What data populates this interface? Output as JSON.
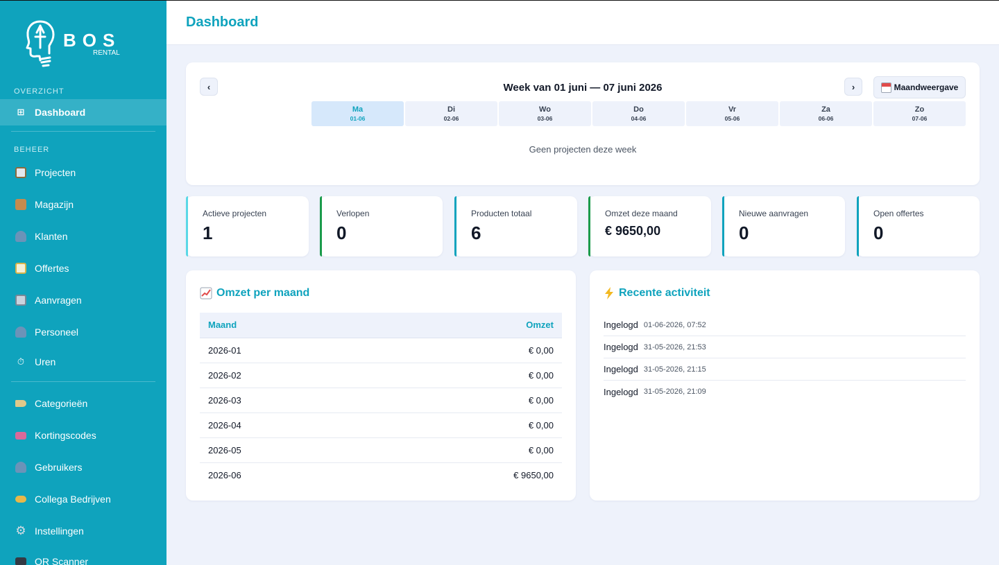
{
  "brand": {
    "name": "BOS",
    "sub": "RENTAL"
  },
  "sidebar": {
    "sections": [
      "OVERZICHT",
      "BEHEER"
    ],
    "items": [
      {
        "label": "Dashboard",
        "icon": "grid-icon"
      },
      {
        "label": "Projecten",
        "icon": "clipboard-icon"
      },
      {
        "label": "Magazijn",
        "icon": "package-icon"
      },
      {
        "label": "Klanten",
        "icon": "user-icon"
      },
      {
        "label": "Offertes",
        "icon": "memo-icon"
      },
      {
        "label": "Aanvragen",
        "icon": "inbox-icon"
      },
      {
        "label": "Personeel",
        "icon": "users-icon"
      },
      {
        "label": "Uren",
        "icon": "stopwatch-icon"
      },
      {
        "label": "Categorieën",
        "icon": "tag-icon"
      },
      {
        "label": "Kortingscodes",
        "icon": "ticket-icon"
      },
      {
        "label": "Gebruikers",
        "icon": "users-icon"
      },
      {
        "label": "Collega Bedrijven",
        "icon": "handshake-icon"
      },
      {
        "label": "Instellingen",
        "icon": "gear-icon"
      },
      {
        "label": "QR Scanner",
        "icon": "monitor-icon"
      }
    ]
  },
  "header": {
    "title": "Dashboard"
  },
  "calendar": {
    "prev": "‹",
    "next": "›",
    "title": "Week van 01 juni — 07 juni 2026",
    "month_view": "Maandweergave",
    "days": [
      {
        "name": "Ma",
        "date": "01-06"
      },
      {
        "name": "Di",
        "date": "02-06"
      },
      {
        "name": "Wo",
        "date": "03-06"
      },
      {
        "name": "Do",
        "date": "04-06"
      },
      {
        "name": "Vr",
        "date": "05-06"
      },
      {
        "name": "Za",
        "date": "06-06"
      },
      {
        "name": "Zo",
        "date": "07-06"
      }
    ],
    "empty": "Geen projecten deze week"
  },
  "stats": [
    {
      "label": "Actieve projecten",
      "value": "1",
      "color": "#5ad8e6"
    },
    {
      "label": "Verlopen",
      "value": "0",
      "color": "#1b9b4b"
    },
    {
      "label": "Producten totaal",
      "value": "6",
      "color": "#0fa3bd"
    },
    {
      "label": "Omzet deze maand",
      "value": "€ 9650,00",
      "color": "#1b9b4b"
    },
    {
      "label": "Nieuwe aanvragen",
      "value": "0",
      "color": "#0fa3bd"
    },
    {
      "label": "Open offertes",
      "value": "0",
      "color": "#0fa3bd"
    }
  ],
  "revenue": {
    "title": "Omzet per maand",
    "col_month": "Maand",
    "col_revenue": "Omzet",
    "rows": [
      {
        "month": "2026-01",
        "amount": "€ 0,00"
      },
      {
        "month": "2026-02",
        "amount": "€ 0,00"
      },
      {
        "month": "2026-03",
        "amount": "€ 0,00"
      },
      {
        "month": "2026-04",
        "amount": "€ 0,00"
      },
      {
        "month": "2026-05",
        "amount": "€ 0,00"
      },
      {
        "month": "2026-06",
        "amount": "€ 9650,00"
      }
    ]
  },
  "activity": {
    "title": "Recente activiteit",
    "items": [
      {
        "action": "Ingelogd",
        "time": "01-06-2026, 07:52"
      },
      {
        "action": "Ingelogd",
        "time": "31-05-2026, 21:53"
      },
      {
        "action": "Ingelogd",
        "time": "31-05-2026, 21:15"
      },
      {
        "action": "Ingelogd",
        "time": "31-05-2026, 21:09"
      }
    ]
  }
}
